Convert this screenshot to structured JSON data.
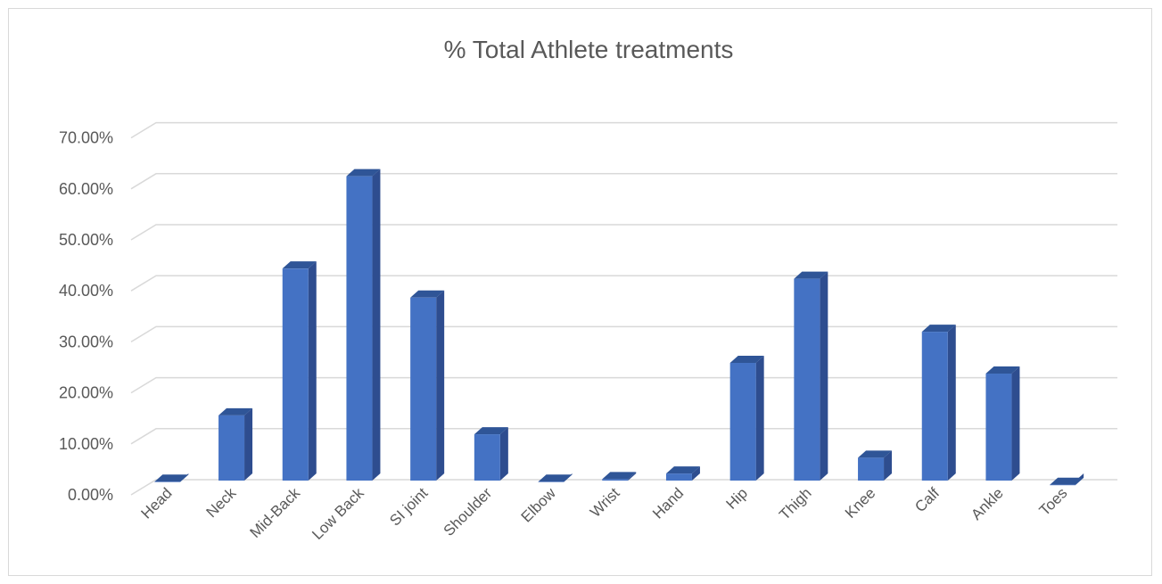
{
  "chart_data": {
    "type": "bar",
    "title": "% Total Athlete treatments",
    "xlabel": "",
    "ylabel": "",
    "categories": [
      "Head",
      "Neck",
      "Mid-Back",
      "Low Back",
      "SI joint",
      "Shoulder",
      "Elbow",
      "Wrist",
      "Hand",
      "Hip",
      "Thigh",
      "Knee",
      "Calf",
      "Ankle",
      "Toes"
    ],
    "values": [
      1.0,
      14.0,
      42.8,
      60.9,
      37.1,
      10.3,
      1.0,
      1.5,
      2.6,
      24.3,
      40.8,
      5.7,
      30.4,
      22.2,
      0.4
    ],
    "ylim": [
      0,
      70
    ],
    "yticks": [
      "0.00%",
      "10.00%",
      "20.00%",
      "30.00%",
      "40.00%",
      "50.00%",
      "60.00%",
      "70.00%"
    ],
    "grid": true,
    "legend": "none",
    "colors": {
      "bar_front": "#4472c4",
      "bar_side": "#2e4d8f",
      "bar_top": "#2f5597",
      "grid": "#d9d9d9",
      "text": "#595959"
    }
  }
}
